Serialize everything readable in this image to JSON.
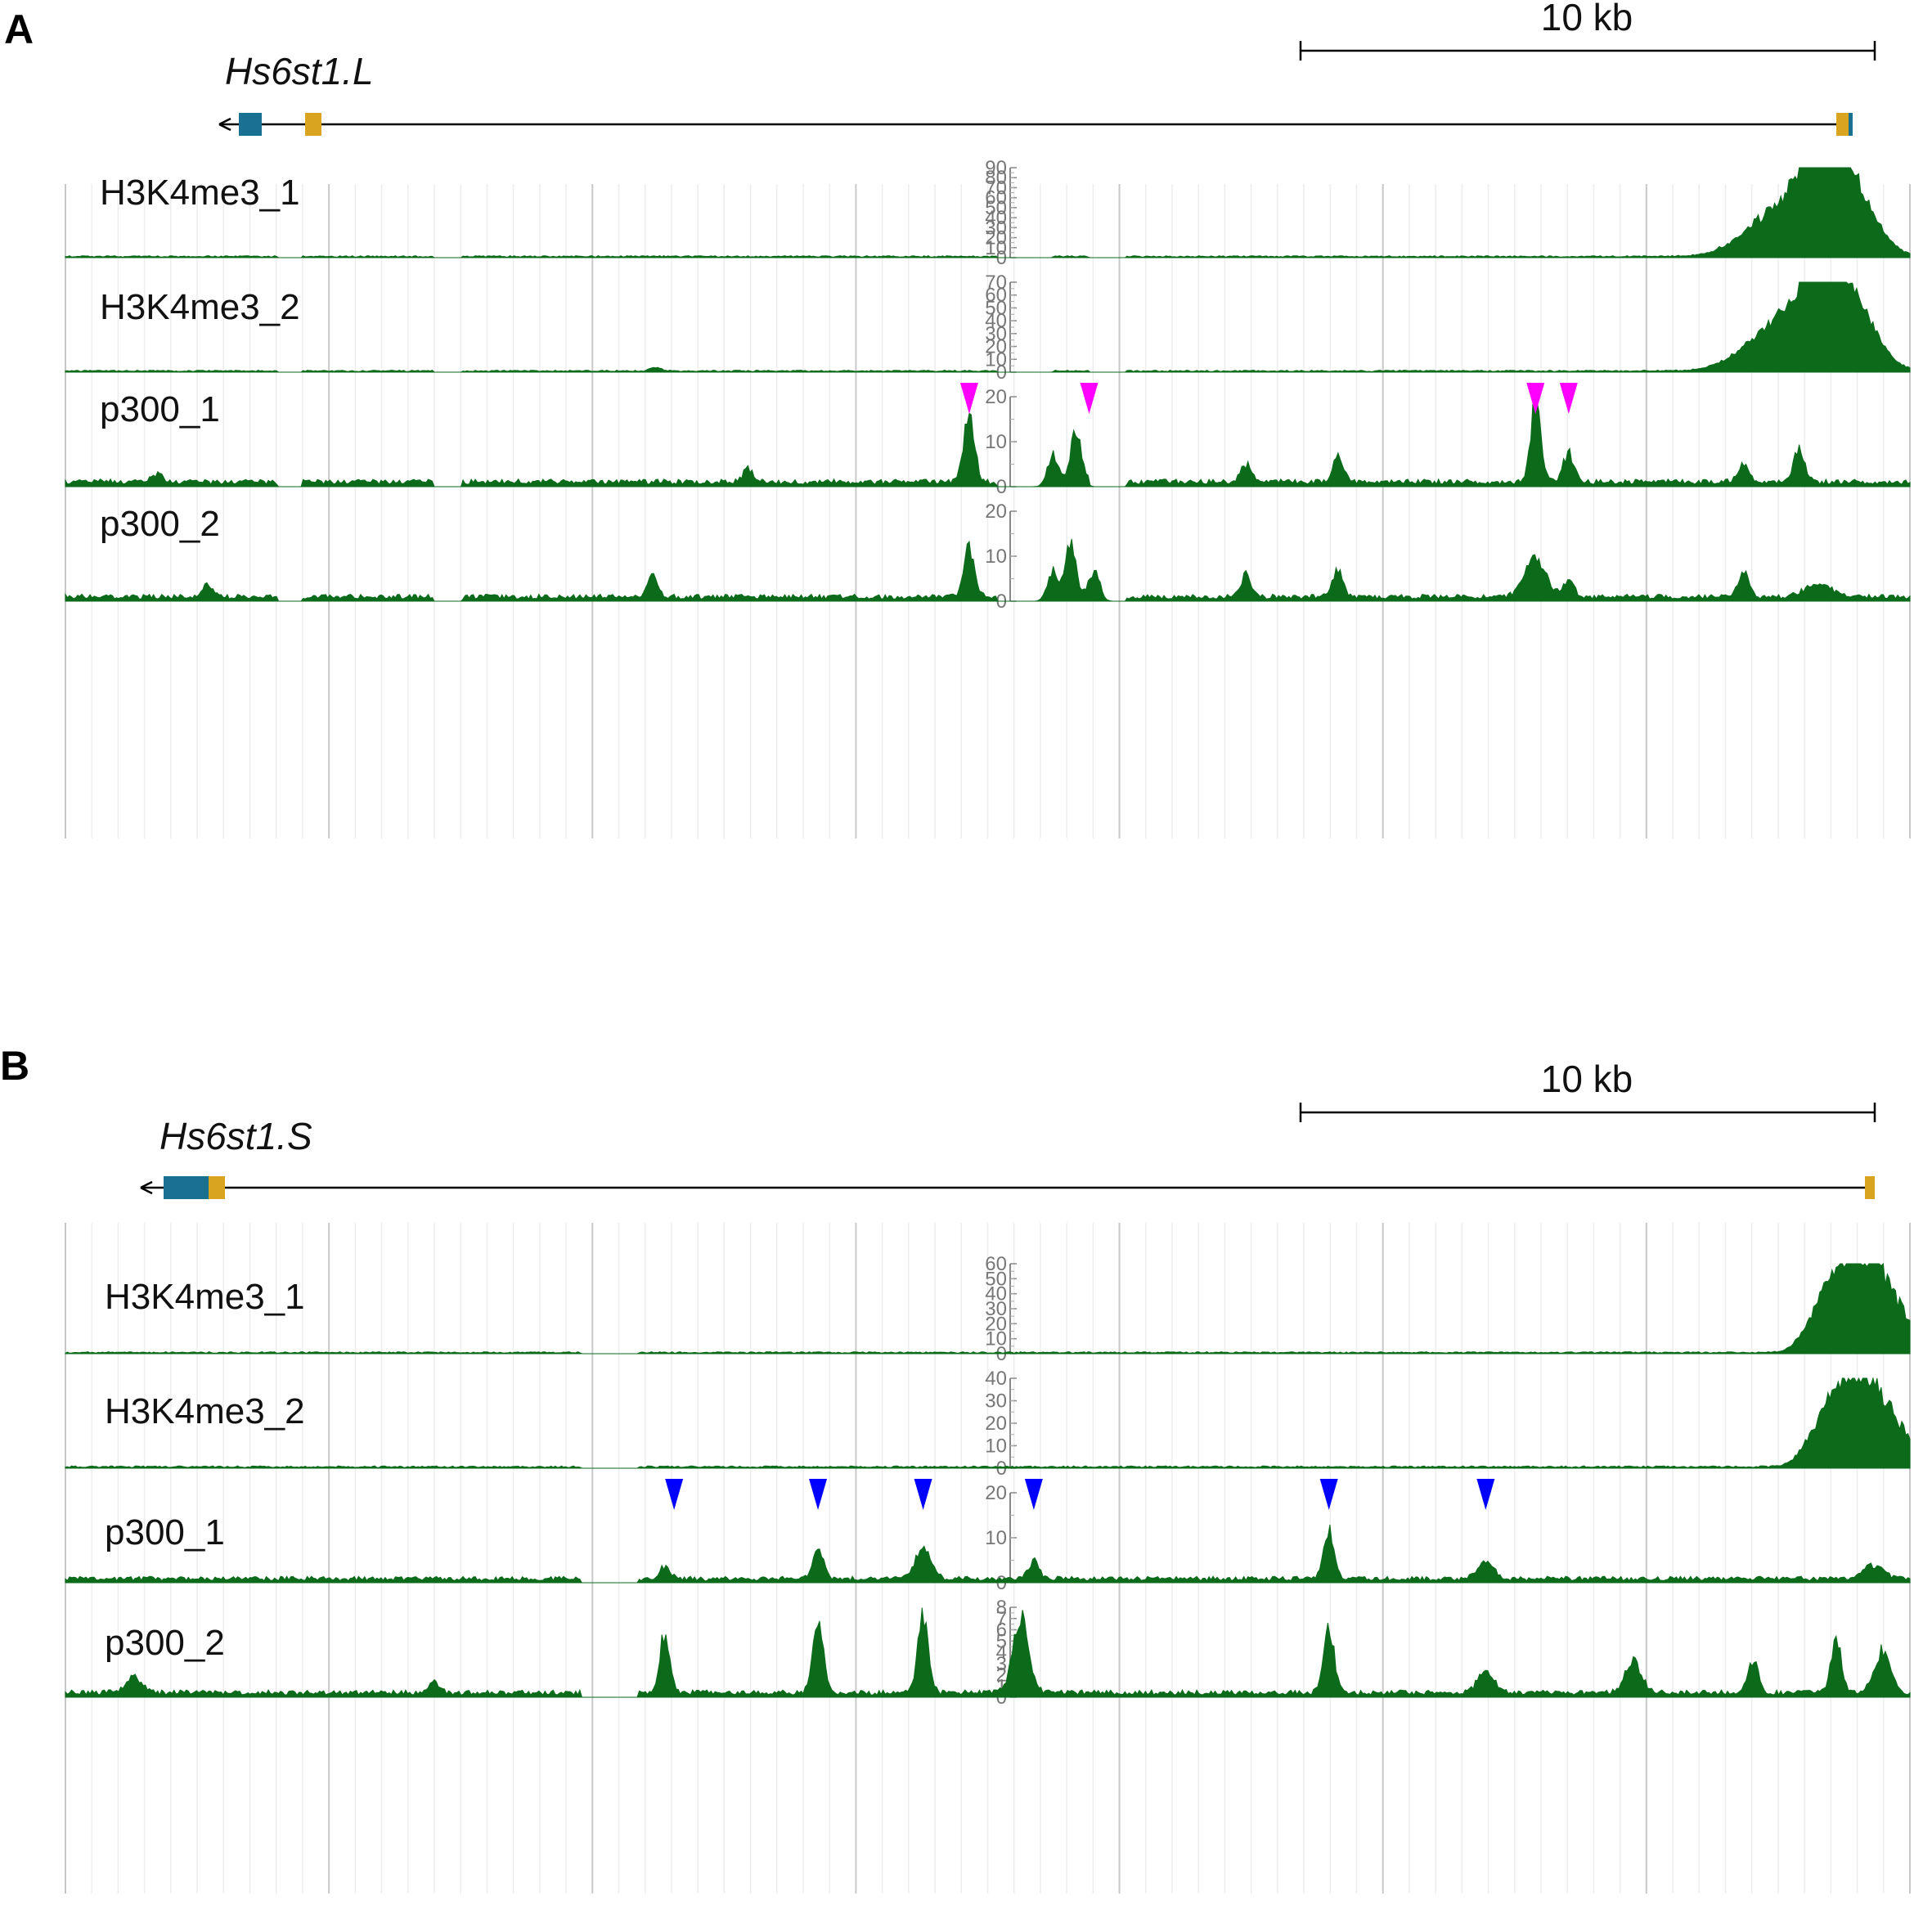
{
  "chart_data": [
    {
      "type": "area",
      "panel": "A",
      "gene": "Hs6st1.L",
      "scale_bar": "10 kb",
      "tracks": [
        {
          "name": "H3K4me3_1",
          "ymax": 90,
          "ticks": [
            "0",
            "10",
            "20",
            "30",
            "40",
            "50",
            "60",
            "70",
            "80",
            "90"
          ],
          "color": "#0b6b1a",
          "peaks": [
            [
              0.955,
              85,
              0.018
            ],
            [
              0.94,
              45,
              0.03
            ],
            [
              0.975,
              30,
              0.015
            ],
            [
              0.92,
              12,
              0.02
            ]
          ],
          "base": 1.5
        },
        {
          "name": "H3K4me3_2",
          "ymax": 70,
          "ticks": [
            "0",
            "10",
            "20",
            "30",
            "40",
            "50",
            "60",
            "70"
          ],
          "color": "#0b6b1a",
          "peaks": [
            [
              0.955,
              60,
              0.018
            ],
            [
              0.94,
              35,
              0.03
            ],
            [
              0.975,
              25,
              0.015
            ],
            [
              0.92,
              10,
              0.02
            ],
            [
              0.32,
              3,
              0.004
            ]
          ],
          "base": 1.2
        },
        {
          "name": "p300_1",
          "ymax": 20,
          "ticks": [
            "0",
            "10",
            "20"
          ],
          "color": "#0b6b1a",
          "peaks": [
            [
              0.49,
              16,
              0.004
            ],
            [
              0.548,
              12,
              0.004
            ],
            [
              0.535,
              7,
              0.004
            ],
            [
              0.797,
              18,
              0.004
            ],
            [
              0.815,
              7,
              0.004
            ],
            [
              0.94,
              8,
              0.004
            ],
            [
              0.91,
              4,
              0.004
            ],
            [
              0.69,
              6,
              0.004
            ],
            [
              0.05,
              2,
              0.004
            ],
            [
              0.64,
              4,
              0.004
            ],
            [
              0.37,
              3,
              0.004
            ]
          ],
          "base": 1.3
        },
        {
          "name": "p300_2",
          "ymax": 20,
          "ticks": [
            "0",
            "10",
            "20"
          ],
          "color": "#0b6b1a",
          "peaks": [
            [
              0.49,
              12,
              0.004
            ],
            [
              0.545,
              13,
              0.004
            ],
            [
              0.535,
              6,
              0.004
            ],
            [
              0.558,
              7,
              0.004
            ],
            [
              0.797,
              9,
              0.008
            ],
            [
              0.815,
              4,
              0.004
            ],
            [
              0.69,
              6,
              0.004
            ],
            [
              0.64,
              5,
              0.004
            ],
            [
              0.91,
              6,
              0.004
            ],
            [
              0.318,
              5,
              0.004
            ],
            [
              0.077,
              3,
              0.004
            ],
            [
              0.95,
              3,
              0.01
            ]
          ],
          "base": 1.2
        }
      ],
      "arrowheads": {
        "track": "p300_1",
        "color": "#ff00ff",
        "x": [
          0.49,
          0.555,
          0.797,
          0.815
        ]
      },
      "gaps": [
        [
          0.115,
          0.128
        ],
        [
          0.2,
          0.215
        ],
        [
          0.505,
          0.535
        ],
        [
          0.555,
          0.575
        ]
      ]
    },
    {
      "type": "area",
      "panel": "B",
      "gene": "Hs6st1.S",
      "scale_bar": "10 kb",
      "tracks": [
        {
          "name": "H3K4me3_1",
          "ymax": 60,
          "ticks": [
            "0",
            "10",
            "20",
            "30",
            "40",
            "50",
            "60"
          ],
          "color": "#0b6b1a",
          "peaks": [
            [
              0.98,
              58,
              0.02
            ],
            [
              0.962,
              35,
              0.015
            ],
            [
              0.95,
              12,
              0.012
            ]
          ],
          "base": 1.0
        },
        {
          "name": "H3K4me3_2",
          "ymax": 40,
          "ticks": [
            "0",
            "10",
            "20",
            "30",
            "40"
          ],
          "color": "#0b6b1a",
          "peaks": [
            [
              0.98,
              35,
              0.02
            ],
            [
              0.962,
              20,
              0.015
            ],
            [
              0.95,
              8,
              0.012
            ]
          ],
          "base": 0.8
        },
        {
          "name": "p300_1",
          "ymax": 20,
          "ticks": [
            "0",
            "10",
            "20"
          ],
          "color": "#0b6b1a",
          "peaks": [
            [
              0.325,
              3,
              0.004
            ],
            [
              0.408,
              7,
              0.004
            ],
            [
              0.465,
              7,
              0.006
            ],
            [
              0.525,
              4,
              0.004
            ],
            [
              0.685,
              11,
              0.004
            ],
            [
              0.77,
              4,
              0.006
            ],
            [
              0.98,
              3,
              0.008
            ]
          ],
          "base": 1.1
        },
        {
          "name": "p300_2",
          "ymax": 8,
          "ticks": [
            "0",
            "1",
            "2",
            "3",
            "4",
            "5",
            "6",
            "7",
            "8"
          ],
          "color": "#0b6b1a",
          "peaks": [
            [
              0.325,
              5.5,
              0.004
            ],
            [
              0.408,
              7,
              0.004
            ],
            [
              0.465,
              7.5,
              0.004
            ],
            [
              0.518,
              7,
              0.006
            ],
            [
              0.685,
              6,
              0.004
            ],
            [
              0.77,
              2,
              0.006
            ],
            [
              0.85,
              3,
              0.006
            ],
            [
              0.915,
              3,
              0.004
            ],
            [
              0.96,
              5,
              0.004
            ],
            [
              0.985,
              4,
              0.006
            ],
            [
              0.037,
              1.5,
              0.006
            ],
            [
              0.2,
              1,
              0.004
            ]
          ],
          "base": 0.5
        }
      ],
      "arrowheads": {
        "track": "p300_1",
        "color": "#0000ff",
        "x": [
          0.33,
          0.408,
          0.465,
          0.525,
          0.685,
          0.77
        ]
      },
      "gaps": [
        [
          0.28,
          0.31
        ]
      ]
    }
  ]
}
